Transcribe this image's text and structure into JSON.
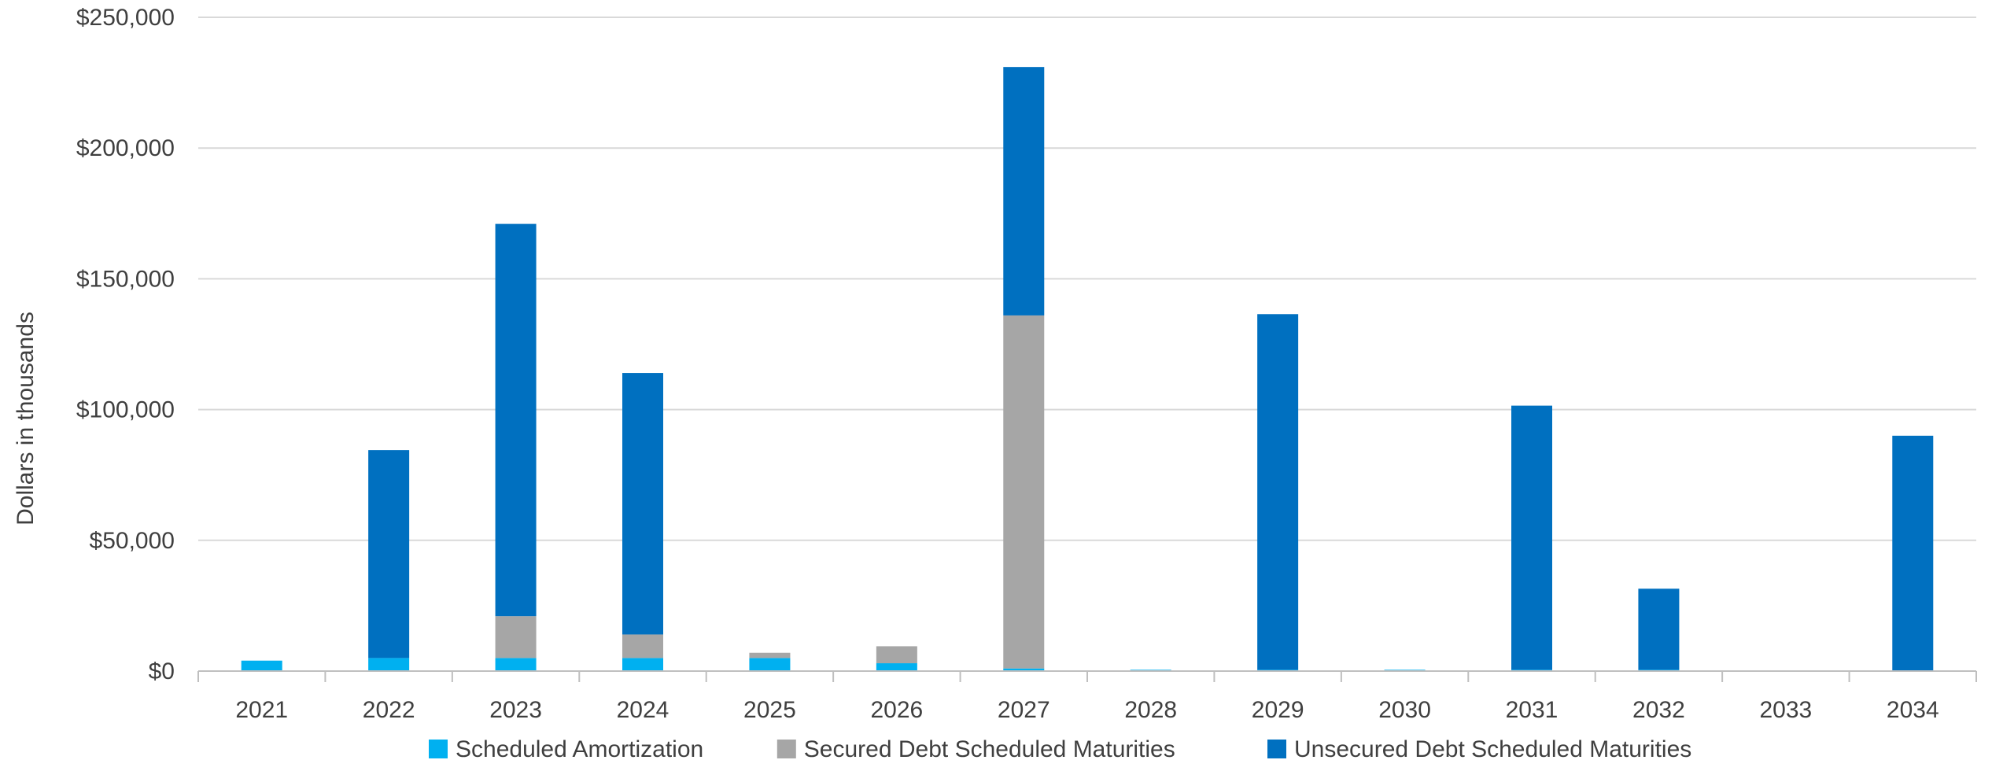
{
  "chart_data": {
    "type": "bar",
    "stacked": true,
    "title": "",
    "xlabel": "",
    "ylabel": "Dollars in thousands",
    "ylim": [
      0,
      250000
    ],
    "ytick_values": [
      0,
      50000,
      100000,
      150000,
      200000,
      250000
    ],
    "ytick_labels": [
      "$0",
      "$50,000",
      "$100,000",
      "$150,000",
      "$200,000",
      "$250,000"
    ],
    "grid": true,
    "legend_position": "bottom",
    "categories": [
      "2021",
      "2022",
      "2023",
      "2024",
      "2025",
      "2026",
      "2027",
      "2028",
      "2029",
      "2030",
      "2031",
      "2032",
      "2033",
      "2034"
    ],
    "series": [
      {
        "name": "Scheduled Amortization",
        "color": "#00b0f0",
        "values": [
          4000,
          5000,
          5000,
          5000,
          5000,
          3000,
          1000,
          500,
          500,
          500,
          500,
          500,
          0,
          0
        ]
      },
      {
        "name": "Secured Debt Scheduled Maturities",
        "color": "#a6a6a6",
        "values": [
          0,
          0,
          16000,
          9000,
          2000,
          6500,
          135000,
          0,
          0,
          0,
          0,
          0,
          0,
          0
        ]
      },
      {
        "name": "Unsecured Debt Scheduled Maturities",
        "color": "#0070c0",
        "values": [
          0,
          79500,
          150000,
          100000,
          0,
          0,
          95000,
          0,
          136000,
          0,
          101000,
          31000,
          0,
          90000
        ]
      }
    ]
  }
}
